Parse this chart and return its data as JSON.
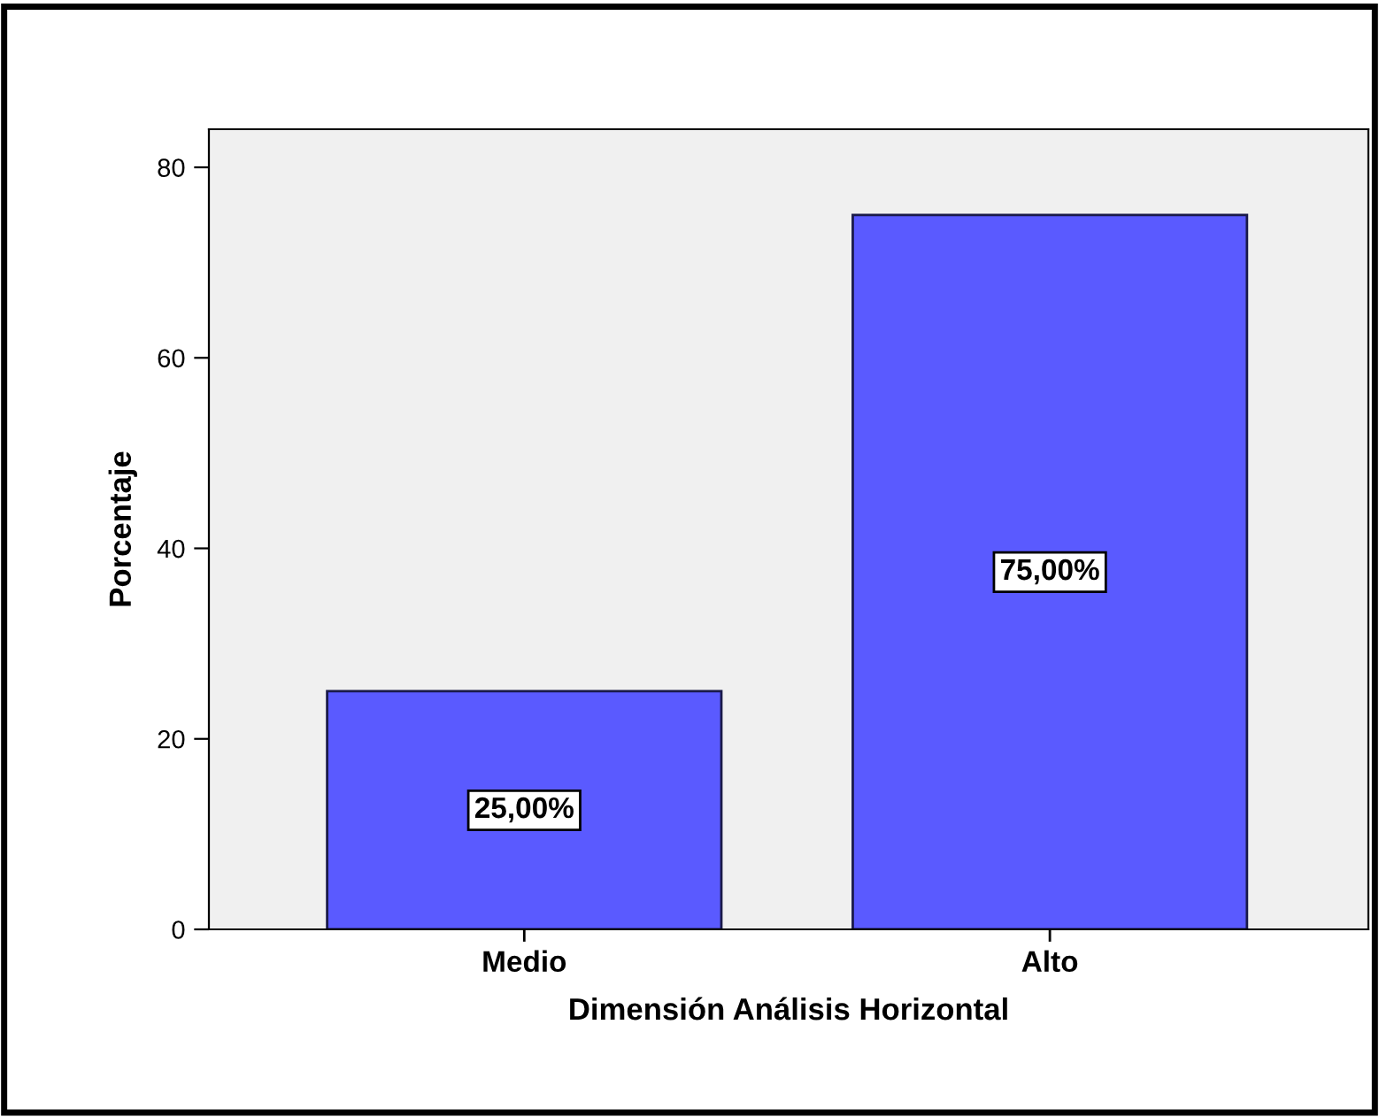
{
  "chart_data": {
    "type": "bar",
    "categories": [
      "Medio",
      "Alto"
    ],
    "values": [
      25,
      75
    ],
    "value_labels": [
      "25,00%",
      "75,00%"
    ],
    "color": "#5a5aff",
    "xlabel": "Dimensión Análisis Horizontal",
    "ylabel": "Porcentaje",
    "ylim": [
      0,
      84
    ],
    "yticks": [
      0,
      20,
      40,
      60,
      80
    ],
    "grid": false,
    "legend": false
  }
}
